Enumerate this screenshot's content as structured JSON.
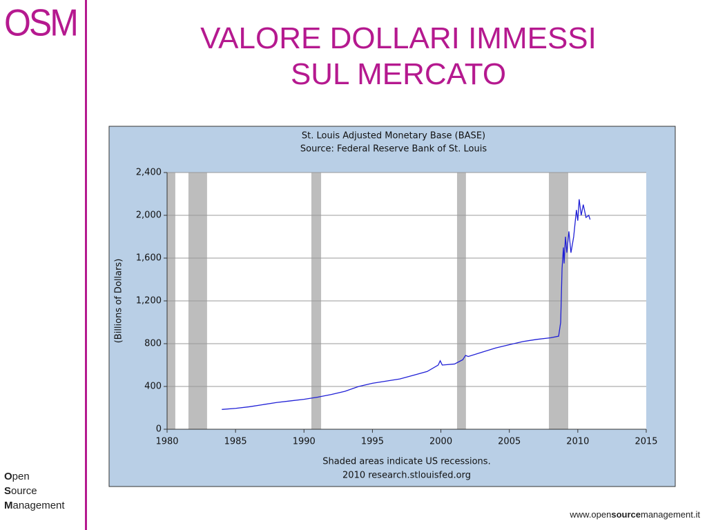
{
  "slide": {
    "logo": "OSM",
    "title_lines": [
      "VALORE DOLLARI IMMESSI",
      "SUL MERCATO"
    ],
    "brand_lines": [
      "Open",
      "Source",
      "Management"
    ],
    "url_parts": [
      "www.open",
      "source",
      "management.it"
    ]
  },
  "chart_data": {
    "type": "line",
    "title_lines": [
      "St. Louis Adjusted Monetary Base (BASE)",
      "Source: Federal Reserve Bank of St. Louis"
    ],
    "y_label": "(Billions of Dollars)",
    "footer_lines": [
      "Shaded areas indicate US recessions.",
      "2010 research.stlouisfed.org"
    ],
    "xlim": [
      1980,
      2015
    ],
    "xticks": [
      1980,
      1985,
      1990,
      1995,
      2000,
      2005,
      2010,
      2015
    ],
    "ylim": [
      0,
      2400
    ],
    "yticks": [
      0,
      400,
      800,
      {
        "value": 1200,
        "label": "1,200"
      },
      {
        "value": 1600,
        "label": "1,600"
      },
      {
        "value": 2000,
        "label": "2,000"
      },
      {
        "value": 2400,
        "label": "2,400"
      }
    ],
    "grid": true,
    "recessions": [
      [
        1980.0,
        1980.6
      ],
      [
        1981.56,
        1982.92
      ],
      [
        1990.54,
        1991.25
      ],
      [
        2001.18,
        2001.83
      ],
      [
        2007.89,
        2009.3
      ]
    ],
    "x": [
      1984.0,
      1985,
      1986,
      1987,
      1988,
      1989,
      1990,
      1991,
      1992,
      1993,
      1994,
      1995,
      1996,
      1997,
      1998,
      1999,
      1999.8,
      1999.95,
      2000.1,
      2001,
      2001.6,
      2001.8,
      2002,
      2003,
      2004,
      2005,
      2006,
      2007,
      2008,
      2008.6,
      2008.75,
      2008.85,
      2008.95,
      2009.0,
      2009.1,
      2009.2,
      2009.35,
      2009.5,
      2009.7,
      2009.9,
      2010.0,
      2010.1,
      2010.25,
      2010.4,
      2010.6,
      2010.8,
      2010.9
    ],
    "series": [
      {
        "color": "#1f1fd6",
        "values": [
          185,
          195,
          210,
          230,
          250,
          265,
          280,
          300,
          325,
          355,
          400,
          430,
          450,
          470,
          505,
          540,
          600,
          640,
          600,
          610,
          650,
          690,
          680,
          720,
          760,
          790,
          820,
          840,
          855,
          870,
          1000,
          1500,
          1700,
          1550,
          1800,
          1650,
          1850,
          1650,
          1800,
          2050,
          1950,
          2150,
          2000,
          2100,
          1980,
          2000,
          1960
        ]
      }
    ]
  }
}
